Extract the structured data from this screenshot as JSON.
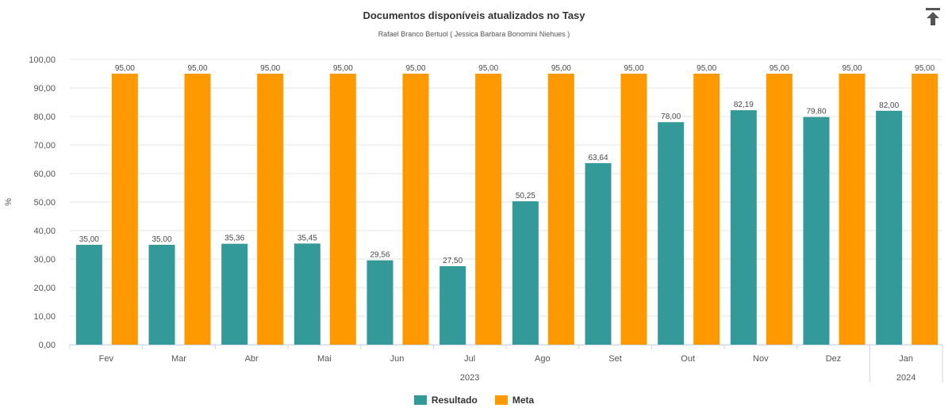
{
  "colors": {
    "resultado": "#339999",
    "meta": "#ff9900"
  },
  "header": {
    "export_icon": "export-arrow-up-icon"
  },
  "chart_data": {
    "type": "bar",
    "title": "Documentos disponíveis atualizados no Tasy",
    "subtitle": "Rafael Branco Bertuol ( Jessica Barbara Bonomini Niehues )",
    "ylabel": "%",
    "xlabel": "",
    "ylim": [
      0,
      100
    ],
    "yticks": [
      "0,00",
      "10,00",
      "20,00",
      "30,00",
      "40,00",
      "50,00",
      "60,00",
      "70,00",
      "80,00",
      "90,00",
      "100,00"
    ],
    "categories": [
      "Fev",
      "Mar",
      "Abr",
      "Mai",
      "Jun",
      "Jul",
      "Ago",
      "Set",
      "Out",
      "Nov",
      "Dez",
      "Jan"
    ],
    "year_groups": [
      {
        "label": "2023",
        "from": 0,
        "to": 10
      },
      {
        "label": "2024",
        "from": 11,
        "to": 11
      }
    ],
    "series": [
      {
        "name": "Resultado",
        "values": [
          35.0,
          35.0,
          35.36,
          35.45,
          29.56,
          27.5,
          50.25,
          63.64,
          78.0,
          82.19,
          79.8,
          82.0
        ],
        "labels": [
          "35,00",
          "35,00",
          "35,36",
          "35,45",
          "29,56",
          "27,50",
          "50,25",
          "63,64",
          "78,00",
          "82,19",
          "79,80",
          "82,00"
        ]
      },
      {
        "name": "Meta",
        "values": [
          95,
          95,
          95,
          95,
          95,
          95,
          95,
          95,
          95,
          95,
          95,
          95
        ],
        "labels": [
          "95,00",
          "95,00",
          "95,00",
          "95,00",
          "95,00",
          "95,00",
          "95,00",
          "95,00",
          "95,00",
          "95,00",
          "95,00",
          "95,00"
        ]
      }
    ],
    "grid": true,
    "legend_position": "bottom-center"
  }
}
